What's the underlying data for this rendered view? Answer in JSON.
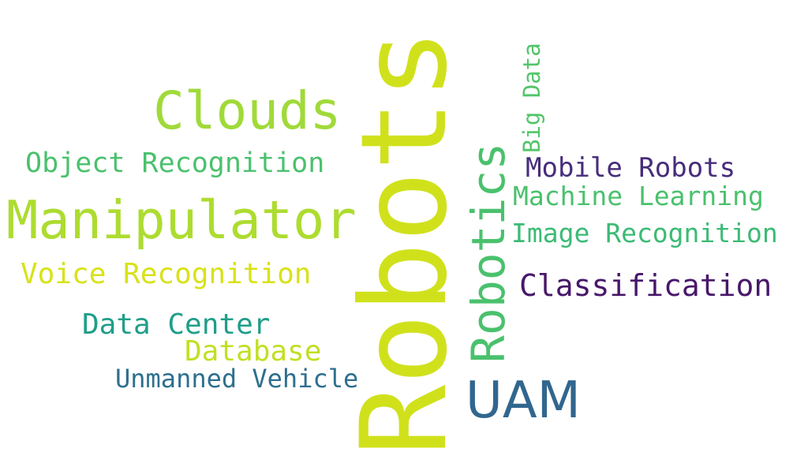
{
  "words": {
    "robots": {
      "text": "Robots",
      "color": "#d0e11c"
    },
    "robotics": {
      "text": "Robotics",
      "color": "#4ac16d"
    },
    "manipulator": {
      "text": "Manipulator",
      "color": "#addc30"
    },
    "clouds": {
      "text": "Clouds",
      "color": "#a0da39"
    },
    "object_recognition": {
      "text": "Object Recognition",
      "color": "#4ac16d"
    },
    "voice_recognition": {
      "text": "Voice Recognition",
      "color": "#d8e219"
    },
    "data_center": {
      "text": "Data Center",
      "color": "#1f9e89"
    },
    "database": {
      "text": "Database",
      "color": "#c2df23"
    },
    "unmanned_vehicle": {
      "text": "Unmanned Vehicle",
      "color": "#2d6f8e"
    },
    "uam": {
      "text": "UAM",
      "color": "#31668e"
    },
    "big_data": {
      "text": "Big Data",
      "color": "#52c569"
    },
    "mobile_robots": {
      "text": "Mobile Robots",
      "color": "#472d7b"
    },
    "machine_learning": {
      "text": "Machine Learning",
      "color": "#4ac16d"
    },
    "image_recognition": {
      "text": "Image Recognition",
      "color": "#3bbb75"
    },
    "classification": {
      "text": "Classification",
      "color": "#481769"
    }
  }
}
